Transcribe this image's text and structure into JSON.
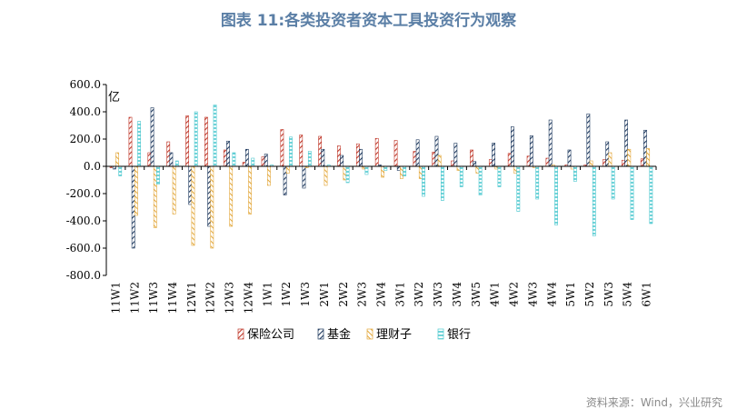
{
  "title": "图表 11:各类投资者资本工具投资行为观察",
  "source": "资料来源：Wind，兴业研究",
  "chart_data": {
    "type": "bar",
    "unit_label": "亿",
    "ylim": [
      -800,
      600
    ],
    "yticks": [
      "600.0",
      "400.0",
      "200.0",
      "0.0",
      "-200.0",
      "-400.0",
      "-600.0",
      "-800.0"
    ],
    "ytick_values": [
      600,
      400,
      200,
      0,
      -200,
      -400,
      -600,
      -800
    ],
    "legend_position": "bottom",
    "categories": [
      "11W1",
      "11W2",
      "11W3",
      "11W4",
      "12W1",
      "12W2",
      "12W3",
      "12W4",
      "1W1",
      "1W2",
      "1W3",
      "2W1",
      "2W2",
      "2W3",
      "2W4",
      "3W1",
      "3W2",
      "3W3",
      "3W4",
      "3W5",
      "4W1",
      "4W2",
      "4W3",
      "4W4",
      "5W1",
      "5W2",
      "5W3",
      "5W4",
      "6W1"
    ],
    "series": [
      {
        "name": "保险公司",
        "color": "#c0392b",
        "values": [
          -10,
          360,
          100,
          180,
          370,
          360,
          120,
          30,
          70,
          270,
          230,
          220,
          150,
          165,
          205,
          190,
          110,
          105,
          40,
          120,
          50,
          95,
          75,
          60,
          10,
          10,
          50,
          45,
          55
        ]
      },
      {
        "name": "基金",
        "color": "#1f3a5f",
        "values": [
          -20,
          -600,
          430,
          100,
          -280,
          -440,
          185,
          125,
          90,
          -210,
          -160,
          125,
          80,
          125,
          10,
          -30,
          195,
          220,
          170,
          35,
          170,
          290,
          225,
          340,
          120,
          385,
          180,
          340,
          265
        ]
      },
      {
        "name": "理财子",
        "color": "#e3a83c",
        "values": [
          100,
          -360,
          -450,
          -350,
          -580,
          -600,
          -440,
          -350,
          -140,
          -50,
          -10,
          -140,
          -100,
          -20,
          -80,
          -90,
          -90,
          80,
          -30,
          -50,
          -20,
          -50,
          -10,
          10,
          -20,
          40,
          100,
          125,
          130
        ]
      },
      {
        "name": "银行",
        "color": "#4fc9d0",
        "values": [
          -70,
          330,
          -130,
          40,
          400,
          450,
          100,
          60,
          10,
          215,
          110,
          10,
          -120,
          -60,
          -30,
          -70,
          -220,
          -250,
          -150,
          -210,
          -150,
          -330,
          -240,
          -430,
          -110,
          -510,
          -240,
          -390,
          -420
        ]
      }
    ]
  }
}
